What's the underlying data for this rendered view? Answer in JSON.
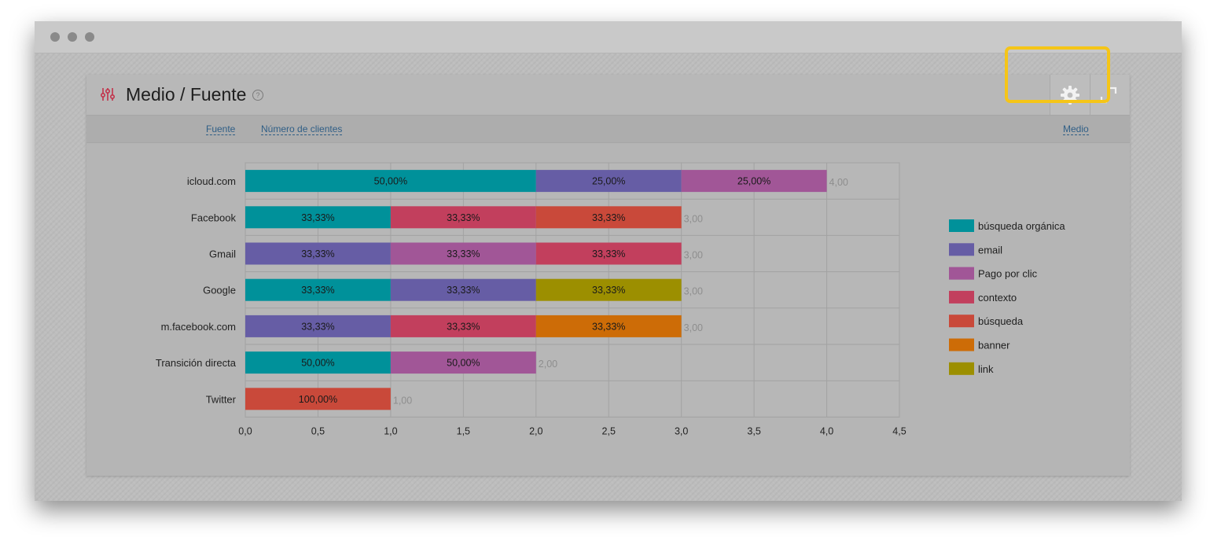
{
  "panel": {
    "title": "Medio / Fuente",
    "help": "?"
  },
  "subheader": {
    "source_link": "Fuente",
    "clients_link": "Número de clientes",
    "medium_link": "Medio"
  },
  "icons": {
    "filters": "sliders-icon",
    "settings": "gear-icon",
    "expand": "expand-icon",
    "help": "help-icon"
  },
  "colors": {
    "accent_highlight": "#f5c518",
    "filters_icon": "#c2324a"
  },
  "chart_data": {
    "type": "bar",
    "orientation": "horizontal",
    "stacked": true,
    "categories": [
      "icloud.com",
      "Facebook",
      "Gmail",
      "Google",
      "m.facebook.com",
      "Transición directa",
      "Twitter"
    ],
    "series": [
      {
        "name": "búsqueda orgánica",
        "color": "#00919a",
        "values": [
          2,
          1,
          0,
          1,
          0,
          1,
          0
        ]
      },
      {
        "name": "email",
        "color": "#665da5",
        "values": [
          1,
          0,
          1,
          1,
          1,
          0,
          0
        ]
      },
      {
        "name": "Pago por clic",
        "color": "#a15697",
        "values": [
          1,
          0,
          1,
          0,
          0,
          1,
          0
        ]
      },
      {
        "name": "contexto",
        "color": "#c23f5d",
        "values": [
          0,
          1,
          1,
          0,
          1,
          0,
          0
        ]
      },
      {
        "name": "búsqueda",
        "color": "#c9493a",
        "values": [
          0,
          1,
          0,
          0,
          0,
          0,
          1
        ]
      },
      {
        "name": "banner",
        "color": "#cd6c07",
        "values": [
          0,
          0,
          0,
          0,
          1,
          0,
          0
        ]
      },
      {
        "name": "link",
        "color": "#9c8f00",
        "values": [
          0,
          0,
          0,
          1,
          0,
          0,
          0
        ]
      }
    ],
    "segment_order": [
      [
        "búsqueda orgánica",
        "email",
        "Pago por clic"
      ],
      [
        "búsqueda orgánica",
        "contexto",
        "búsqueda"
      ],
      [
        "email",
        "Pago por clic",
        "contexto"
      ],
      [
        "búsqueda orgánica",
        "email",
        "link"
      ],
      [
        "email",
        "contexto",
        "banner"
      ],
      [
        "búsqueda orgánica",
        "Pago por clic"
      ],
      [
        "búsqueda"
      ]
    ],
    "segment_labels": [
      [
        "50,00%",
        "25,00%",
        "25,00%"
      ],
      [
        "33,33%",
        "33,33%",
        "33,33%"
      ],
      [
        "33,33%",
        "33,33%",
        "33,33%"
      ],
      [
        "33,33%",
        "33,33%",
        "33,33%"
      ],
      [
        "33,33%",
        "33,33%",
        "33,33%"
      ],
      [
        "50,00%",
        "50,00%"
      ],
      [
        "100,00%"
      ]
    ],
    "totals": [
      4,
      3,
      3,
      3,
      3,
      2,
      1
    ],
    "total_labels": [
      "4,00",
      "3,00",
      "3,00",
      "3,00",
      "3,00",
      "2,00",
      "1,00"
    ],
    "xlim": [
      0,
      4.5
    ],
    "xticks": [
      0,
      0.5,
      1,
      1.5,
      2,
      2.5,
      3,
      3.5,
      4,
      4.5
    ],
    "xtick_labels": [
      "0,0",
      "0,5",
      "1,0",
      "1,5",
      "2,0",
      "2,5",
      "3,0",
      "3,5",
      "4,0",
      "4,5"
    ],
    "grid": true,
    "legend_position": "right"
  }
}
